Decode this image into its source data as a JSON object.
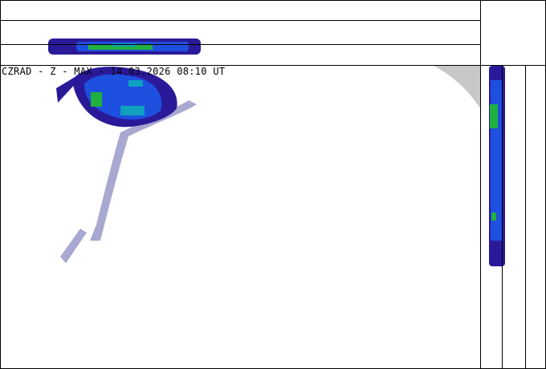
{
  "product_label": "CZRAD - Z - MAX - 14.03.2026 08:10 UT",
  "colors": {
    "light_echo": "#a8a8d0",
    "dark_blue": "#2a1a9a",
    "blue": "#1e50e0",
    "cyan": "#10a0c0",
    "green": "#20b040",
    "out_of_range": "#c8c8c8"
  }
}
